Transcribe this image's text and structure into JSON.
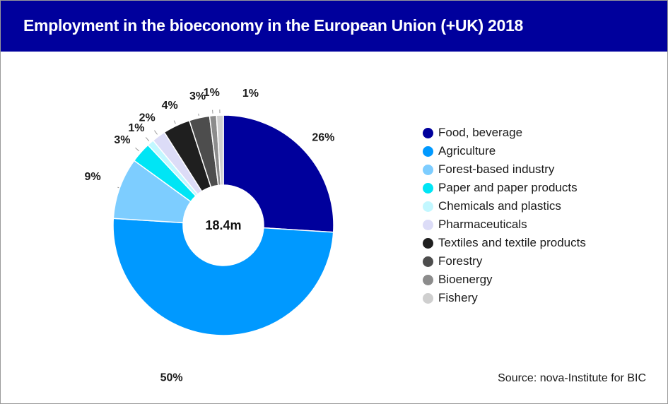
{
  "title": "Employment in the bioeconomy in the European Union (+UK) 2018",
  "source": "Source: nova-Institute for BIC",
  "chart_data": {
    "type": "pie",
    "center_label": "18.4m",
    "series": [
      {
        "name": "Food, beverage",
        "value": 26,
        "label": "26%",
        "color": "#00009c"
      },
      {
        "name": "Agriculture",
        "value": 50,
        "label": "50%",
        "color": "#0099ff"
      },
      {
        "name": "Forest-based industry",
        "value": 9,
        "label": "9%",
        "color": "#7dcdff"
      },
      {
        "name": "Paper and paper products",
        "value": 3,
        "label": "3%",
        "color": "#00e5f5"
      },
      {
        "name": "Chemicals and plastics",
        "value": 1,
        "label": "1%",
        "color": "#c2f7ff"
      },
      {
        "name": "Pharmaceuticals",
        "value": 2,
        "label": "2%",
        "color": "#dcdcf7"
      },
      {
        "name": "Textiles and textile products",
        "value": 4,
        "label": "4%",
        "color": "#1f1f1f"
      },
      {
        "name": "Forestry",
        "value": 3,
        "label": "3%",
        "color": "#4d4d4d"
      },
      {
        "name": "Bioenergy",
        "value": 1,
        "label": "1%",
        "color": "#8c8c8c"
      },
      {
        "name": "Fishery",
        "value": 1,
        "label": "1%",
        "color": "#cfcfcf"
      }
    ]
  }
}
